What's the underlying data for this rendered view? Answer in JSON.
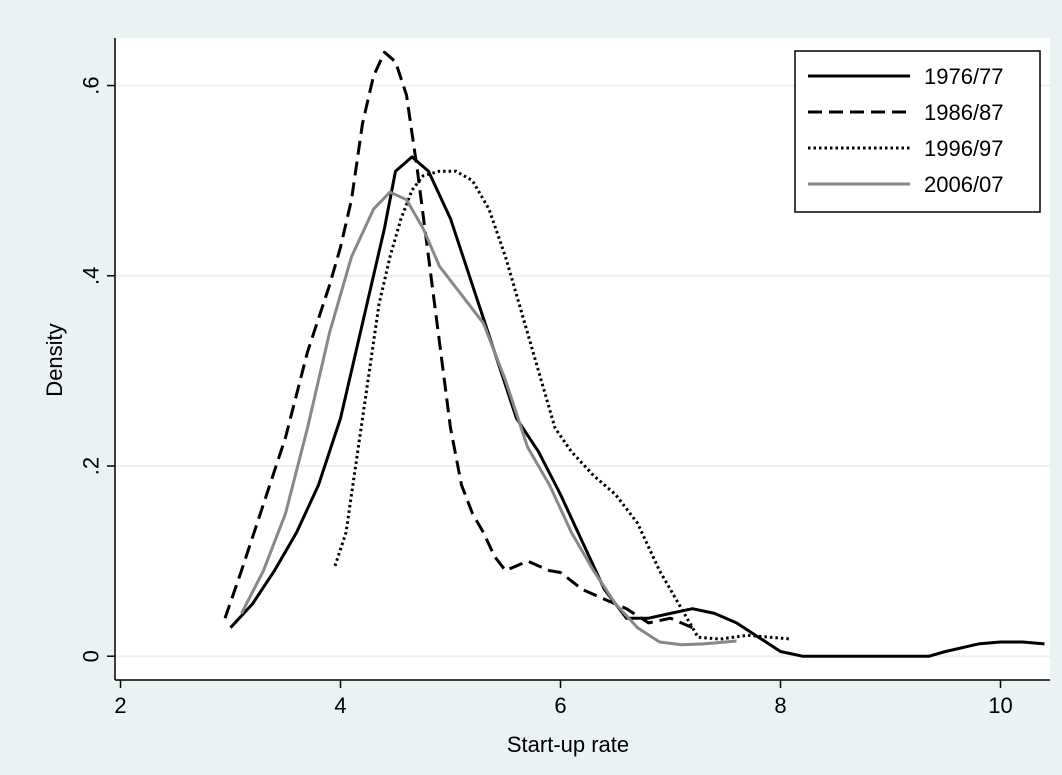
{
  "chart_data": {
    "type": "line",
    "title": "",
    "xlabel": "Start-up rate",
    "ylabel": "Density",
    "xlim": [
      1.95,
      10.45
    ],
    "ylim": [
      -0.025,
      0.65
    ],
    "x_ticks": [
      {
        "value": 2,
        "label": "2"
      },
      {
        "value": 4,
        "label": "4"
      },
      {
        "value": 6,
        "label": "6"
      },
      {
        "value": 8,
        "label": "8"
      },
      {
        "value": 10,
        "label": "10"
      }
    ],
    "y_ticks": [
      {
        "value": 0,
        "label": "0"
      },
      {
        "value": 0.2,
        "label": ".2"
      },
      {
        "value": 0.4,
        "label": ".4"
      },
      {
        "value": 0.6,
        "label": ".6"
      }
    ],
    "grid": "horizontal",
    "legend_position": "top-right",
    "series": [
      {
        "name": "1976/77",
        "color": "#000000",
        "dash": "solid",
        "points": [
          [
            3.0,
            0.03
          ],
          [
            3.2,
            0.055
          ],
          [
            3.4,
            0.09
          ],
          [
            3.6,
            0.13
          ],
          [
            3.8,
            0.18
          ],
          [
            4.0,
            0.25
          ],
          [
            4.2,
            0.35
          ],
          [
            4.4,
            0.45
          ],
          [
            4.5,
            0.51
          ],
          [
            4.65,
            0.525
          ],
          [
            4.8,
            0.51
          ],
          [
            5.0,
            0.46
          ],
          [
            5.2,
            0.39
          ],
          [
            5.4,
            0.32
          ],
          [
            5.6,
            0.25
          ],
          [
            5.8,
            0.215
          ],
          [
            6.0,
            0.17
          ],
          [
            6.2,
            0.12
          ],
          [
            6.4,
            0.07
          ],
          [
            6.6,
            0.04
          ],
          [
            6.8,
            0.04
          ],
          [
            7.0,
            0.045
          ],
          [
            7.2,
            0.05
          ],
          [
            7.4,
            0.045
          ],
          [
            7.6,
            0.035
          ],
          [
            7.8,
            0.02
          ],
          [
            8.0,
            0.005
          ],
          [
            8.2,
            0.0
          ],
          [
            8.5,
            0.0
          ],
          [
            9.0,
            0.0
          ],
          [
            9.35,
            0.0
          ],
          [
            9.5,
            0.005
          ],
          [
            9.8,
            0.013
          ],
          [
            10.0,
            0.015
          ],
          [
            10.2,
            0.015
          ],
          [
            10.4,
            0.013
          ]
        ]
      },
      {
        "name": "1986/87",
        "color": "#000000",
        "dash": "dashed",
        "points": [
          [
            2.95,
            0.04
          ],
          [
            3.1,
            0.09
          ],
          [
            3.3,
            0.16
          ],
          [
            3.5,
            0.23
          ],
          [
            3.7,
            0.32
          ],
          [
            3.9,
            0.39
          ],
          [
            4.0,
            0.43
          ],
          [
            4.1,
            0.48
          ],
          [
            4.2,
            0.56
          ],
          [
            4.3,
            0.61
          ],
          [
            4.4,
            0.635
          ],
          [
            4.5,
            0.625
          ],
          [
            4.6,
            0.59
          ],
          [
            4.7,
            0.51
          ],
          [
            4.8,
            0.42
          ],
          [
            4.9,
            0.33
          ],
          [
            5.0,
            0.24
          ],
          [
            5.1,
            0.18
          ],
          [
            5.2,
            0.15
          ],
          [
            5.3,
            0.13
          ],
          [
            5.4,
            0.105
          ],
          [
            5.5,
            0.09
          ],
          [
            5.6,
            0.095
          ],
          [
            5.7,
            0.1
          ],
          [
            5.8,
            0.095
          ],
          [
            5.9,
            0.09
          ],
          [
            6.0,
            0.088
          ],
          [
            6.2,
            0.07
          ],
          [
            6.4,
            0.06
          ],
          [
            6.6,
            0.05
          ],
          [
            6.8,
            0.035
          ],
          [
            7.0,
            0.04
          ],
          [
            7.2,
            0.03
          ]
        ]
      },
      {
        "name": "1996/97",
        "color": "#000000",
        "dash": "dotted",
        "points": [
          [
            3.95,
            0.095
          ],
          [
            4.05,
            0.13
          ],
          [
            4.15,
            0.21
          ],
          [
            4.25,
            0.29
          ],
          [
            4.35,
            0.37
          ],
          [
            4.45,
            0.42
          ],
          [
            4.55,
            0.46
          ],
          [
            4.65,
            0.49
          ],
          [
            4.75,
            0.505
          ],
          [
            4.9,
            0.51
          ],
          [
            5.05,
            0.51
          ],
          [
            5.2,
            0.5
          ],
          [
            5.35,
            0.47
          ],
          [
            5.5,
            0.42
          ],
          [
            5.65,
            0.36
          ],
          [
            5.8,
            0.3
          ],
          [
            5.95,
            0.24
          ],
          [
            6.1,
            0.215
          ],
          [
            6.3,
            0.19
          ],
          [
            6.5,
            0.17
          ],
          [
            6.7,
            0.14
          ],
          [
            6.9,
            0.09
          ],
          [
            7.1,
            0.05
          ],
          [
            7.25,
            0.02
          ],
          [
            7.45,
            0.018
          ],
          [
            7.7,
            0.022
          ],
          [
            7.9,
            0.02
          ],
          [
            8.1,
            0.018
          ]
        ]
      },
      {
        "name": "2006/07",
        "color": "#888888",
        "dash": "solid",
        "points": [
          [
            3.1,
            0.045
          ],
          [
            3.3,
            0.09
          ],
          [
            3.5,
            0.15
          ],
          [
            3.7,
            0.24
          ],
          [
            3.9,
            0.34
          ],
          [
            4.1,
            0.42
          ],
          [
            4.3,
            0.47
          ],
          [
            4.45,
            0.488
          ],
          [
            4.6,
            0.48
          ],
          [
            4.75,
            0.45
          ],
          [
            4.9,
            0.41
          ],
          [
            5.1,
            0.38
          ],
          [
            5.3,
            0.35
          ],
          [
            5.5,
            0.29
          ],
          [
            5.7,
            0.22
          ],
          [
            5.9,
            0.18
          ],
          [
            6.1,
            0.13
          ],
          [
            6.3,
            0.09
          ],
          [
            6.5,
            0.055
          ],
          [
            6.7,
            0.03
          ],
          [
            6.9,
            0.015
          ],
          [
            7.1,
            0.012
          ],
          [
            7.3,
            0.013
          ],
          [
            7.5,
            0.015
          ],
          [
            7.6,
            0.016
          ]
        ]
      }
    ]
  }
}
